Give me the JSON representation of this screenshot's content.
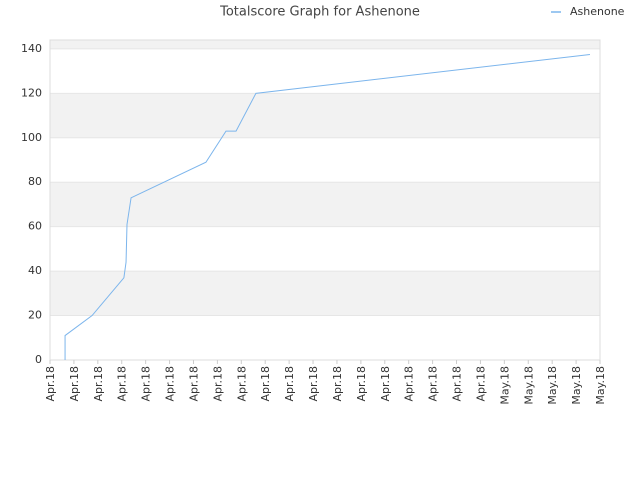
{
  "chart_data": {
    "type": "line",
    "title": "Totalscore Graph for Ashenone",
    "x": [
      0.63,
      0.63,
      1.76,
      3.09,
      3.18,
      3.22,
      3.39,
      6.52,
      7.36,
      7.78,
      8.61,
      22.58
    ],
    "series": [
      {
        "name": "Ashenone",
        "color": "#7cb5ec",
        "values": [
          0,
          11,
          20,
          37,
          44,
          61,
          73,
          89,
          103,
          103,
          120,
          137.5
        ]
      }
    ],
    "xlim": [
      0,
      23
    ],
    "xticks": [
      {
        "value": 0,
        "label": "Apr.18"
      },
      {
        "value": 1,
        "label": "Apr.18"
      },
      {
        "value": 2,
        "label": "Apr.18"
      },
      {
        "value": 3,
        "label": "Apr.18"
      },
      {
        "value": 4,
        "label": "Apr.18"
      },
      {
        "value": 5,
        "label": "Apr.18"
      },
      {
        "value": 6,
        "label": "Apr.18"
      },
      {
        "value": 7,
        "label": "Apr.18"
      },
      {
        "value": 8,
        "label": "Apr.18"
      },
      {
        "value": 9,
        "label": "Apr.18"
      },
      {
        "value": 10,
        "label": "Apr.18"
      },
      {
        "value": 11,
        "label": "Apr.18"
      },
      {
        "value": 12,
        "label": "Apr.18"
      },
      {
        "value": 13,
        "label": "Apr.18"
      },
      {
        "value": 14,
        "label": "Apr.18"
      },
      {
        "value": 15,
        "label": "Apr.18"
      },
      {
        "value": 16,
        "label": "Apr.18"
      },
      {
        "value": 17,
        "label": "Apr.18"
      },
      {
        "value": 18,
        "label": "Apr.18"
      },
      {
        "value": 19,
        "label": "May.18"
      },
      {
        "value": 20,
        "label": "May.18"
      },
      {
        "value": 21,
        "label": "May.18"
      },
      {
        "value": 22,
        "label": "May.18"
      },
      {
        "value": 23,
        "label": "May.18"
      }
    ],
    "ylim": [
      0,
      144
    ],
    "yticks": [
      0,
      20,
      40,
      60,
      80,
      100,
      120,
      140
    ],
    "grid": true,
    "alternate_bands": true,
    "legend": "top-right"
  }
}
